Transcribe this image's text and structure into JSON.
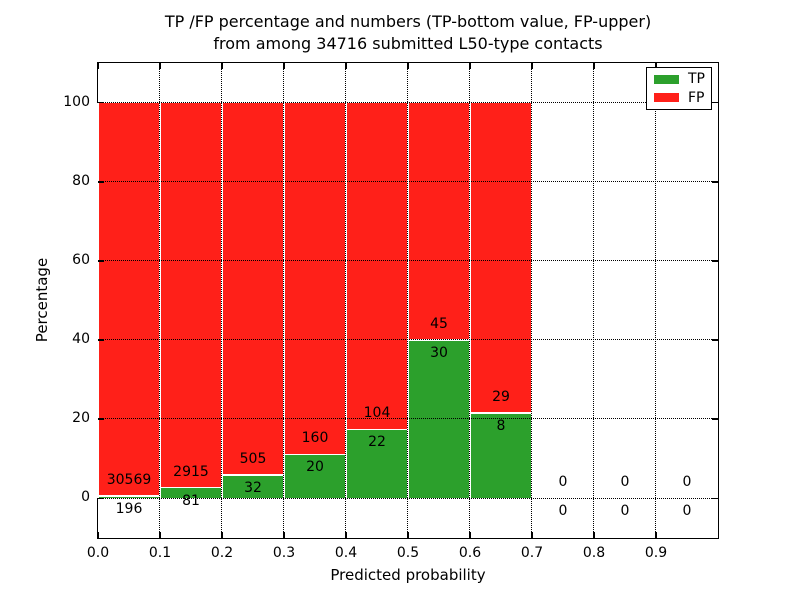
{
  "chart_data": {
    "type": "bar",
    "stacked": true,
    "title_line1": "TP /FP percentage and numbers (TP-bottom value, FP-upper)",
    "title_line2": "from among 34716 submitted L50-type contacts",
    "xlabel": "Predicted probability",
    "ylabel": "Percentage",
    "xlim": [
      0.0,
      1.0
    ],
    "ylim": [
      -10,
      110
    ],
    "xticks": [
      "0.0",
      "0.1",
      "0.2",
      "0.3",
      "0.4",
      "0.5",
      "0.6",
      "0.7",
      "0.8",
      "0.9"
    ],
    "yticks": [
      0,
      20,
      40,
      60,
      80,
      100
    ],
    "grid": "dotted",
    "legend_position": "upper right",
    "colors": {
      "tp": "#2CA02C",
      "fp": "#FF2019",
      "bar_edge": "#ffffff",
      "axes": "#000000",
      "background": "#ffffff"
    },
    "legend": [
      {
        "label": "TP",
        "color": "#2CA02C"
      },
      {
        "label": "FP",
        "color": "#FF2019"
      }
    ],
    "bin_width": 0.1,
    "bins": [
      {
        "x0": 0.0,
        "tp": 196,
        "fp": 30569
      },
      {
        "x0": 0.1,
        "tp": 81,
        "fp": 2915
      },
      {
        "x0": 0.2,
        "tp": 32,
        "fp": 505
      },
      {
        "x0": 0.3,
        "tp": 20,
        "fp": 160
      },
      {
        "x0": 0.4,
        "tp": 22,
        "fp": 104
      },
      {
        "x0": 0.5,
        "tp": 30,
        "fp": 45
      },
      {
        "x0": 0.6,
        "tp": 8,
        "fp": 29
      },
      {
        "x0": 0.7,
        "tp": 0,
        "fp": 0
      },
      {
        "x0": 0.8,
        "tp": 0,
        "fp": 0
      },
      {
        "x0": 0.9,
        "tp": 0,
        "fp": 0
      }
    ],
    "note": "Each populated bin is stacked to 100%; green TP segment height = tp/(tp+fp)*100, red FP fills to 100. FP count printed above green top, TP count below it."
  }
}
